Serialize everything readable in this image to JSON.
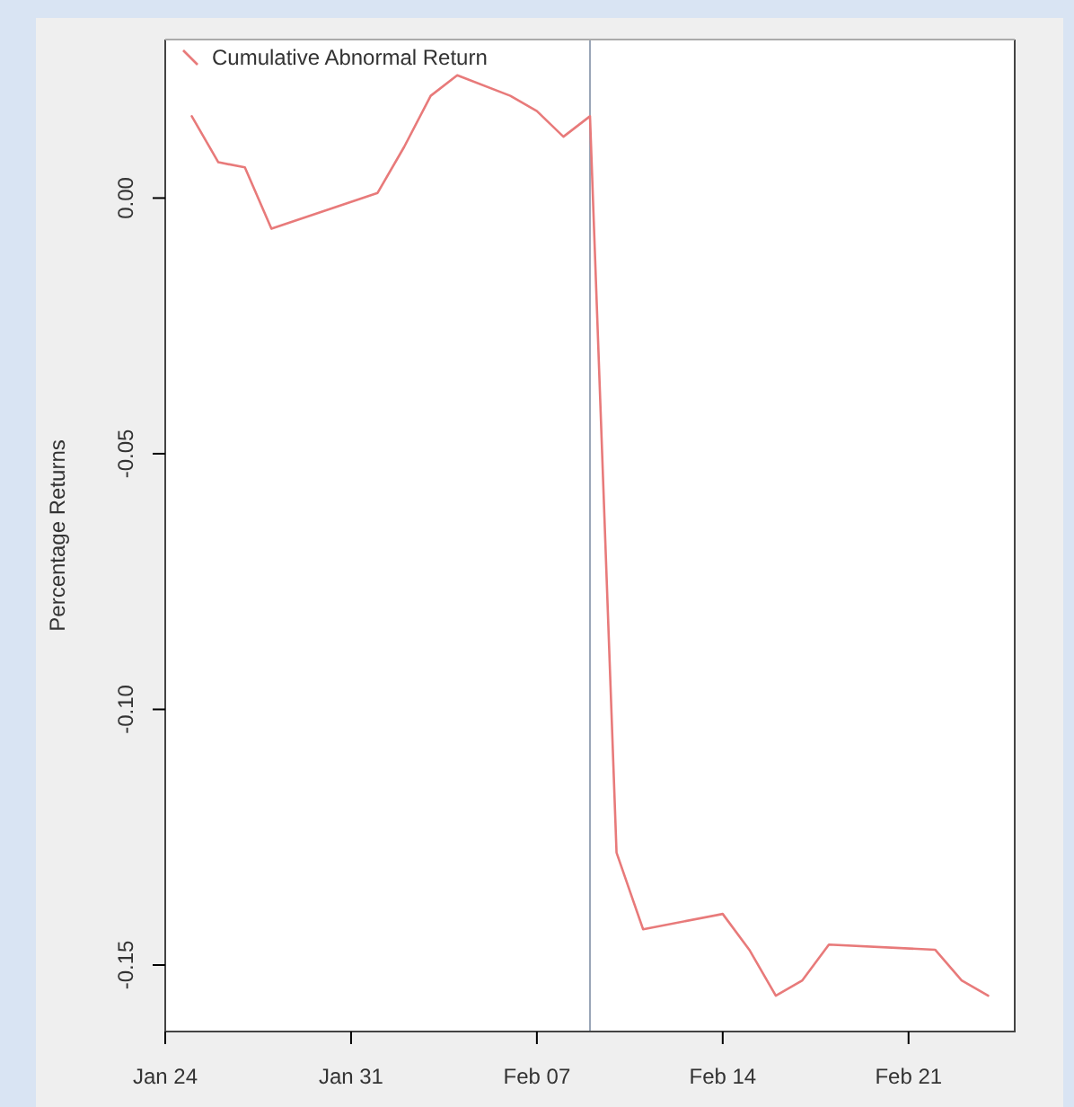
{
  "chart_data": {
    "type": "line",
    "ylabel": "Percentage Returns",
    "x": [
      "--01-25",
      "--01-26",
      "--01-27",
      "--01-28",
      "--02-01",
      "--02-02",
      "--02-03",
      "--02-04",
      "--02-06",
      "--02-07",
      "--02-08",
      "--02-09",
      "--02-10",
      "--02-11",
      "--02-14",
      "--02-15",
      "--02-16",
      "--02-17",
      "--02-18",
      "--02-22",
      "--02-23",
      "--02-24"
    ],
    "series": [
      {
        "name": "Cumulative Abnormal Return",
        "color": "#e87a7a",
        "values": [
          0.016,
          0.007,
          0.006,
          -0.006,
          0.001,
          0.01,
          0.02,
          0.024,
          0.02,
          0.017,
          0.012,
          0.016,
          -0.128,
          -0.143,
          -0.14,
          -0.147,
          -0.156,
          -0.153,
          -0.146,
          -0.147,
          -0.153,
          -0.156
        ]
      }
    ],
    "xlim": [
      "--01-24",
      "--02-25"
    ],
    "xticks": [
      {
        "value": "--01-24",
        "label": "Jan 24"
      },
      {
        "value": "--01-31",
        "label": "Jan 31"
      },
      {
        "value": "--02-07",
        "label": "Feb 07"
      },
      {
        "value": "--02-14",
        "label": "Feb 14"
      },
      {
        "value": "--02-21",
        "label": "Feb 21"
      }
    ],
    "ylim": [
      -0.163,
      0.031
    ],
    "yticks": [
      {
        "value": -0.15,
        "label": "-0.15"
      },
      {
        "value": -0.1,
        "label": "-0.10"
      },
      {
        "value": -0.05,
        "label": "-0.05"
      },
      {
        "value": 0,
        "label": "0.00"
      }
    ],
    "ref_lines": [
      {
        "axis": "x",
        "value": "--02-09",
        "color": "#9aa6b8"
      }
    ],
    "legend": "top left",
    "grid": false,
    "marker": "none",
    "line_style": "solid"
  }
}
